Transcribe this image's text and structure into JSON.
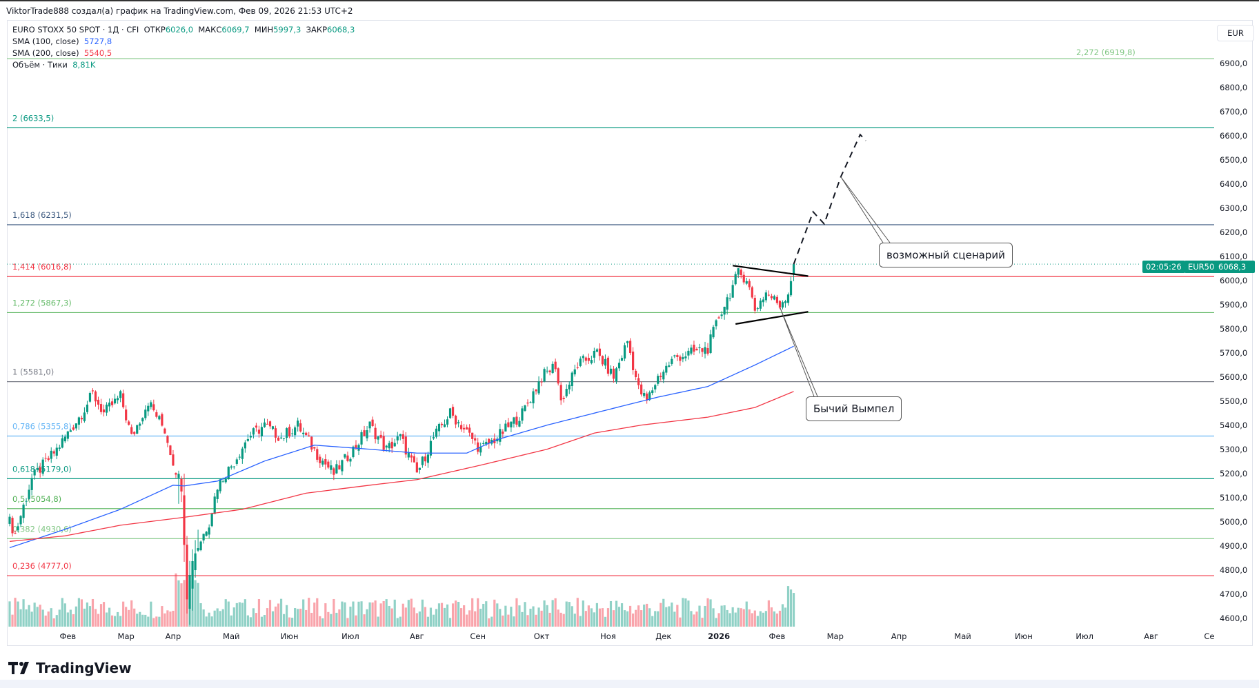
{
  "header": {
    "title": "ViktorTrade888 создал(а) график на TradingView.com, Фев 09, 2026 21:53 UTC+2",
    "symbol": "EURO STOXX 50 SPOT · 1Д · CFI",
    "open_label": "ОТКР",
    "open": "6026,0",
    "high_label": "МАКС",
    "high": "6069,7",
    "low_label": "МИН",
    "low": "5997,3",
    "close_label": "ЗАКР",
    "close": "6068,3",
    "sma100_label": "SMA (100, close)",
    "sma100_value": "5727,8",
    "sma200_label": "SMA (200, close)",
    "sma200_value": "5540,5",
    "volume_label": "Объём · Тики",
    "volume_value": "8,81K",
    "currency_button": "EUR"
  },
  "price_tag": {
    "symbol": "EUR50",
    "price": "6068,3",
    "countdown": "02:05:26"
  },
  "annotations": {
    "scenario": "возможный сценарий",
    "pennant": "Бычий Вымпел"
  },
  "footer": {
    "logo": "TradingView"
  },
  "colors": {
    "up": "#089981",
    "down": "#f23645",
    "sma100": "#2962ff",
    "sma200": "#f23645"
  },
  "chart_data": {
    "type": "candlestick",
    "title": "EURO STOXX 50 SPOT · 1Д · CFI",
    "ylim": [
      4560,
      6960
    ],
    "price_ticks": [
      "6900,0",
      "6800,0",
      "6700,0",
      "6600,0",
      "6500,0",
      "6400,0",
      "6300,0",
      "6200,0",
      "6100,0",
      "6000,0",
      "5900,0",
      "5800,0",
      "5700,0",
      "5600,0",
      "5500,0",
      "5400,0",
      "5300,0",
      "5200,0",
      "5100,0",
      "5000,0",
      "4900,0",
      "4800,0",
      "4700,0",
      "4600,0"
    ],
    "price_tick_values": [
      6900,
      6800,
      6700,
      6600,
      6500,
      6400,
      6300,
      6200,
      6100,
      6000,
      5900,
      5800,
      5700,
      5600,
      5500,
      5400,
      5300,
      5200,
      5100,
      5000,
      4900,
      4800,
      4700,
      4600
    ],
    "time_ticks": [
      {
        "label": "Фев",
        "bar": 21
      },
      {
        "label": "Мар",
        "bar": 42
      },
      {
        "label": "Апр",
        "bar": 59
      },
      {
        "label": "Май",
        "bar": 80
      },
      {
        "label": "Июн",
        "bar": 101
      },
      {
        "label": "Июл",
        "bar": 123
      },
      {
        "label": "Авг",
        "bar": 147
      },
      {
        "label": "Сен",
        "bar": 169
      },
      {
        "label": "Окт",
        "bar": 192
      },
      {
        "label": "Ноя",
        "bar": 216
      },
      {
        "label": "Дек",
        "bar": 236
      },
      {
        "label": "2026",
        "bar": 256
      },
      {
        "label": "Фев",
        "bar": 277
      },
      {
        "label": "Мар",
        "bar": 298
      },
      {
        "label": "Апр",
        "bar": 321
      },
      {
        "label": "Май",
        "bar": 344
      },
      {
        "label": "Июн",
        "bar": 366
      },
      {
        "label": "Июл",
        "bar": 388
      },
      {
        "label": "Авг",
        "bar": 412
      },
      {
        "label": "Се",
        "bar": 433
      }
    ],
    "bar_count": 284,
    "close_keypoints": [
      [
        0,
        5000
      ],
      [
        2,
        4950
      ],
      [
        8,
        5180
      ],
      [
        17,
        5300
      ],
      [
        26,
        5450
      ],
      [
        30,
        5530
      ],
      [
        34,
        5450
      ],
      [
        40,
        5520
      ],
      [
        44,
        5350
      ],
      [
        50,
        5500
      ],
      [
        56,
        5380
      ],
      [
        59,
        5250
      ],
      [
        62,
        5150
      ],
      [
        64,
        4700
      ],
      [
        66,
        4850
      ],
      [
        72,
        5000
      ],
      [
        75,
        5150
      ],
      [
        81,
        5250
      ],
      [
        86,
        5350
      ],
      [
        92,
        5400
      ],
      [
        98,
        5350
      ],
      [
        104,
        5400
      ],
      [
        111,
        5280
      ],
      [
        117,
        5200
      ],
      [
        124,
        5300
      ],
      [
        130,
        5400
      ],
      [
        136,
        5300
      ],
      [
        141,
        5350
      ],
      [
        147,
        5200
      ],
      [
        153,
        5350
      ],
      [
        159,
        5450
      ],
      [
        163,
        5400
      ],
      [
        170,
        5300
      ],
      [
        176,
        5350
      ],
      [
        185,
        5450
      ],
      [
        192,
        5600
      ],
      [
        197,
        5650
      ],
      [
        199,
        5500
      ],
      [
        205,
        5650
      ],
      [
        212,
        5700
      ],
      [
        218,
        5600
      ],
      [
        223,
        5750
      ],
      [
        227,
        5550
      ],
      [
        230,
        5500
      ],
      [
        234,
        5600
      ],
      [
        240,
        5680
      ],
      [
        246,
        5700
      ],
      [
        252,
        5720
      ],
      [
        256,
        5850
      ],
      [
        260,
        5950
      ],
      [
        263,
        6030
      ],
      [
        266,
        6010
      ],
      [
        269,
        5880
      ],
      [
        273,
        5950
      ],
      [
        278,
        5900
      ],
      [
        281,
        5950
      ],
      [
        283,
        6068.3
      ]
    ],
    "sma100_keypoints": [
      [
        0,
        4893
      ],
      [
        20,
        4969
      ],
      [
        40,
        5052
      ],
      [
        59,
        5152
      ],
      [
        63,
        5149
      ],
      [
        75,
        5169
      ],
      [
        92,
        5252
      ],
      [
        110,
        5318
      ],
      [
        130,
        5301
      ],
      [
        147,
        5285
      ],
      [
        165,
        5285
      ],
      [
        176,
        5341
      ],
      [
        194,
        5401
      ],
      [
        217,
        5468
      ],
      [
        234,
        5517
      ],
      [
        252,
        5561
      ],
      [
        269,
        5650
      ],
      [
        283,
        5727.8
      ]
    ],
    "sma200_keypoints": [
      [
        0,
        4919
      ],
      [
        20,
        4942
      ],
      [
        40,
        4986
      ],
      [
        63,
        5019
      ],
      [
        84,
        5052
      ],
      [
        107,
        5119
      ],
      [
        130,
        5152
      ],
      [
        147,
        5175
      ],
      [
        170,
        5235
      ],
      [
        194,
        5301
      ],
      [
        211,
        5368
      ],
      [
        228,
        5401
      ],
      [
        252,
        5434
      ],
      [
        269,
        5474
      ],
      [
        283,
        5540.5
      ]
    ],
    "fib_levels": [
      {
        "label": "2,272 (6919,8)",
        "price": 6919.8,
        "color": "#81c784"
      },
      {
        "label": "2 (6633,5)",
        "price": 6633.5,
        "color": "#089981"
      },
      {
        "label": "1,618 (6231,5)",
        "price": 6231.5,
        "color": "#3d5a80"
      },
      {
        "label": "1,414 (6016,8)",
        "price": 6016.8,
        "color": "#f23645"
      },
      {
        "label": "1,272 (5867,3)",
        "price": 5867.3,
        "color": "#66bb6a"
      },
      {
        "label": "1 (5581,0)",
        "price": 5581.0,
        "color": "#787b86"
      },
      {
        "label": "0,786 (5355,8)",
        "price": 5355.8,
        "color": "#64b5f6"
      },
      {
        "label": "0,618 (5179,0)",
        "price": 5179.0,
        "color": "#089981"
      },
      {
        "label": "0,5 (5054,8)",
        "price": 5054.8,
        "color": "#4caf50"
      },
      {
        "label": "0,382 (4930,6)",
        "price": 4930.6,
        "color": "#81c784"
      },
      {
        "label": "0,236 (4777,0)",
        "price": 4777.0,
        "color": "#f23645"
      }
    ],
    "pennant": {
      "upper": [
        [
          261,
          6062
        ],
        [
          282,
          6010
        ]
      ],
      "lower": [
        [
          263,
          5820
        ],
        [
          282,
          5888
        ]
      ]
    },
    "scenario_path": [
      [
        283,
        6068
      ],
      [
        290,
        6285
      ],
      [
        294,
        6235
      ],
      [
        300,
        6430
      ],
      [
        307,
        6605
      ],
      [
        309,
        6580
      ]
    ]
  }
}
